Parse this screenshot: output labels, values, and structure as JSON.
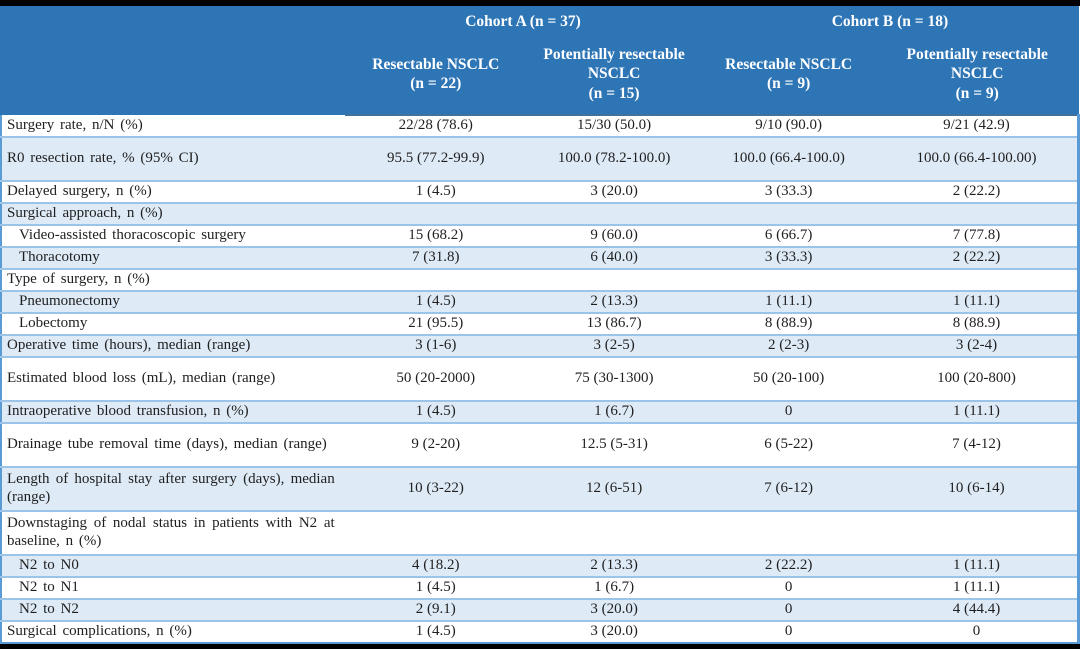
{
  "colors": {
    "header_bg": "#2E75B6",
    "header_text": "#FFFFFF",
    "row_alt_bg": "#DEEAF6",
    "row_bg": "#FFFFFF",
    "grid_line": "#9CC3E8",
    "outer_border": "#5B9BD5",
    "frame_bar": "#000000",
    "body_text": "#1F1F1F"
  },
  "header": {
    "groups": [
      {
        "label": "Cohort A (n = 37)"
      },
      {
        "label": "Cohort B (n = 18)"
      }
    ],
    "columns": [
      {
        "label": "Resectable NSCLC",
        "n": "(n = 22)"
      },
      {
        "label": "Potentially resectable NSCLC",
        "n": "(n = 15)"
      },
      {
        "label": "Resectable NSCLC",
        "n": "(n = 9)"
      },
      {
        "label": "Potentially resectable NSCLC",
        "n": "(n = 9)"
      }
    ]
  },
  "table": {
    "rows": [
      {
        "label": "Surgery rate, n/N (%)",
        "values": [
          "22/28 (78.6)",
          "15/30 (50.0)",
          "9/10 (90.0)",
          "9/21 (42.9)"
        ],
        "indent": false,
        "tall": false,
        "wrap": false
      },
      {
        "label": "R0 resection rate, % (95% CI)",
        "values": [
          "95.5 (77.2-99.9)",
          "100.0 (78.2-100.0)",
          "100.0 (66.4-100.0)",
          "100.0 (66.4-100.00)"
        ],
        "indent": false,
        "tall": true,
        "wrap": false
      },
      {
        "label": "Delayed surgery, n (%)",
        "values": [
          "1 (4.5)",
          "3 (20.0)",
          "3 (33.3)",
          "2 (22.2)"
        ],
        "indent": false,
        "tall": false,
        "wrap": false
      },
      {
        "label": "Surgical approach, n (%)",
        "values": [
          "",
          "",
          "",
          ""
        ],
        "indent": false,
        "tall": false,
        "wrap": false
      },
      {
        "label": "Video-assisted thoracoscopic surgery",
        "values": [
          "15 (68.2)",
          "9 (60.0)",
          "6 (66.7)",
          "7 (77.8)"
        ],
        "indent": true,
        "tall": false,
        "wrap": false
      },
      {
        "label": "Thoracotomy",
        "values": [
          "7 (31.8)",
          "6 (40.0)",
          "3 (33.3)",
          "2 (22.2)"
        ],
        "indent": true,
        "tall": false,
        "wrap": false
      },
      {
        "label": "Type of surgery, n (%)",
        "values": [
          "",
          "",
          "",
          ""
        ],
        "indent": false,
        "tall": false,
        "wrap": false
      },
      {
        "label": "Pneumonectomy",
        "values": [
          "1 (4.5)",
          "2 (13.3)",
          "1 (11.1)",
          "1 (11.1)"
        ],
        "indent": true,
        "tall": false,
        "wrap": false
      },
      {
        "label": "Lobectomy",
        "values": [
          "21 (95.5)",
          "13 (86.7)",
          "8 (88.9)",
          "8 (88.9)"
        ],
        "indent": true,
        "tall": false,
        "wrap": false
      },
      {
        "label": "Operative time (hours), median (range)",
        "values": [
          "3 (1-6)",
          "3 (2-5)",
          "2 (2-3)",
          "3 (2-4)"
        ],
        "indent": false,
        "tall": false,
        "wrap": false
      },
      {
        "label": "Estimated blood loss (mL), median (range)",
        "values": [
          "50 (20-2000)",
          "75 (30-1300)",
          "50 (20-100)",
          "100 (20-800)"
        ],
        "indent": false,
        "tall": true,
        "wrap": false
      },
      {
        "label": "Intraoperative blood transfusion, n (%)",
        "values": [
          "1 (4.5)",
          "1 (6.7)",
          "0",
          "1 (11.1)"
        ],
        "indent": false,
        "tall": false,
        "wrap": false
      },
      {
        "label": "Drainage tube removal time (days), median (range)",
        "values": [
          "9 (2-20)",
          "12.5 (5-31)",
          "6 (5-22)",
          "7 (4-12)"
        ],
        "indent": false,
        "tall": true,
        "wrap": true
      },
      {
        "label": "Length of hospital stay after surgery (days), median (range)",
        "values": [
          "10 (3-22)",
          "12 (6-51)",
          "7 (6-12)",
          "10 (6-14)"
        ],
        "indent": false,
        "tall": true,
        "wrap": true
      },
      {
        "label": "Downstaging of nodal status in patients with N2 at baseline, n (%)",
        "values": [
          "",
          "",
          "",
          ""
        ],
        "indent": false,
        "tall": true,
        "wrap": true
      },
      {
        "label": "N2 to N0",
        "values": [
          "4 (18.2)",
          "2 (13.3)",
          "2 (22.2)",
          "1 (11.1)"
        ],
        "indent": true,
        "tall": false,
        "wrap": false
      },
      {
        "label": "N2 to N1",
        "values": [
          "1 (4.5)",
          "1 (6.7)",
          "0",
          "1 (11.1)"
        ],
        "indent": true,
        "tall": false,
        "wrap": false
      },
      {
        "label": "N2 to N2",
        "values": [
          "2 (9.1)",
          "3 (20.0)",
          "0",
          "4 (44.4)"
        ],
        "indent": true,
        "tall": false,
        "wrap": false
      },
      {
        "label": "Surgical complications, n (%)",
        "values": [
          "1 (4.5)",
          "3 (20.0)",
          "0",
          "0"
        ],
        "indent": false,
        "tall": false,
        "wrap": false
      }
    ]
  }
}
